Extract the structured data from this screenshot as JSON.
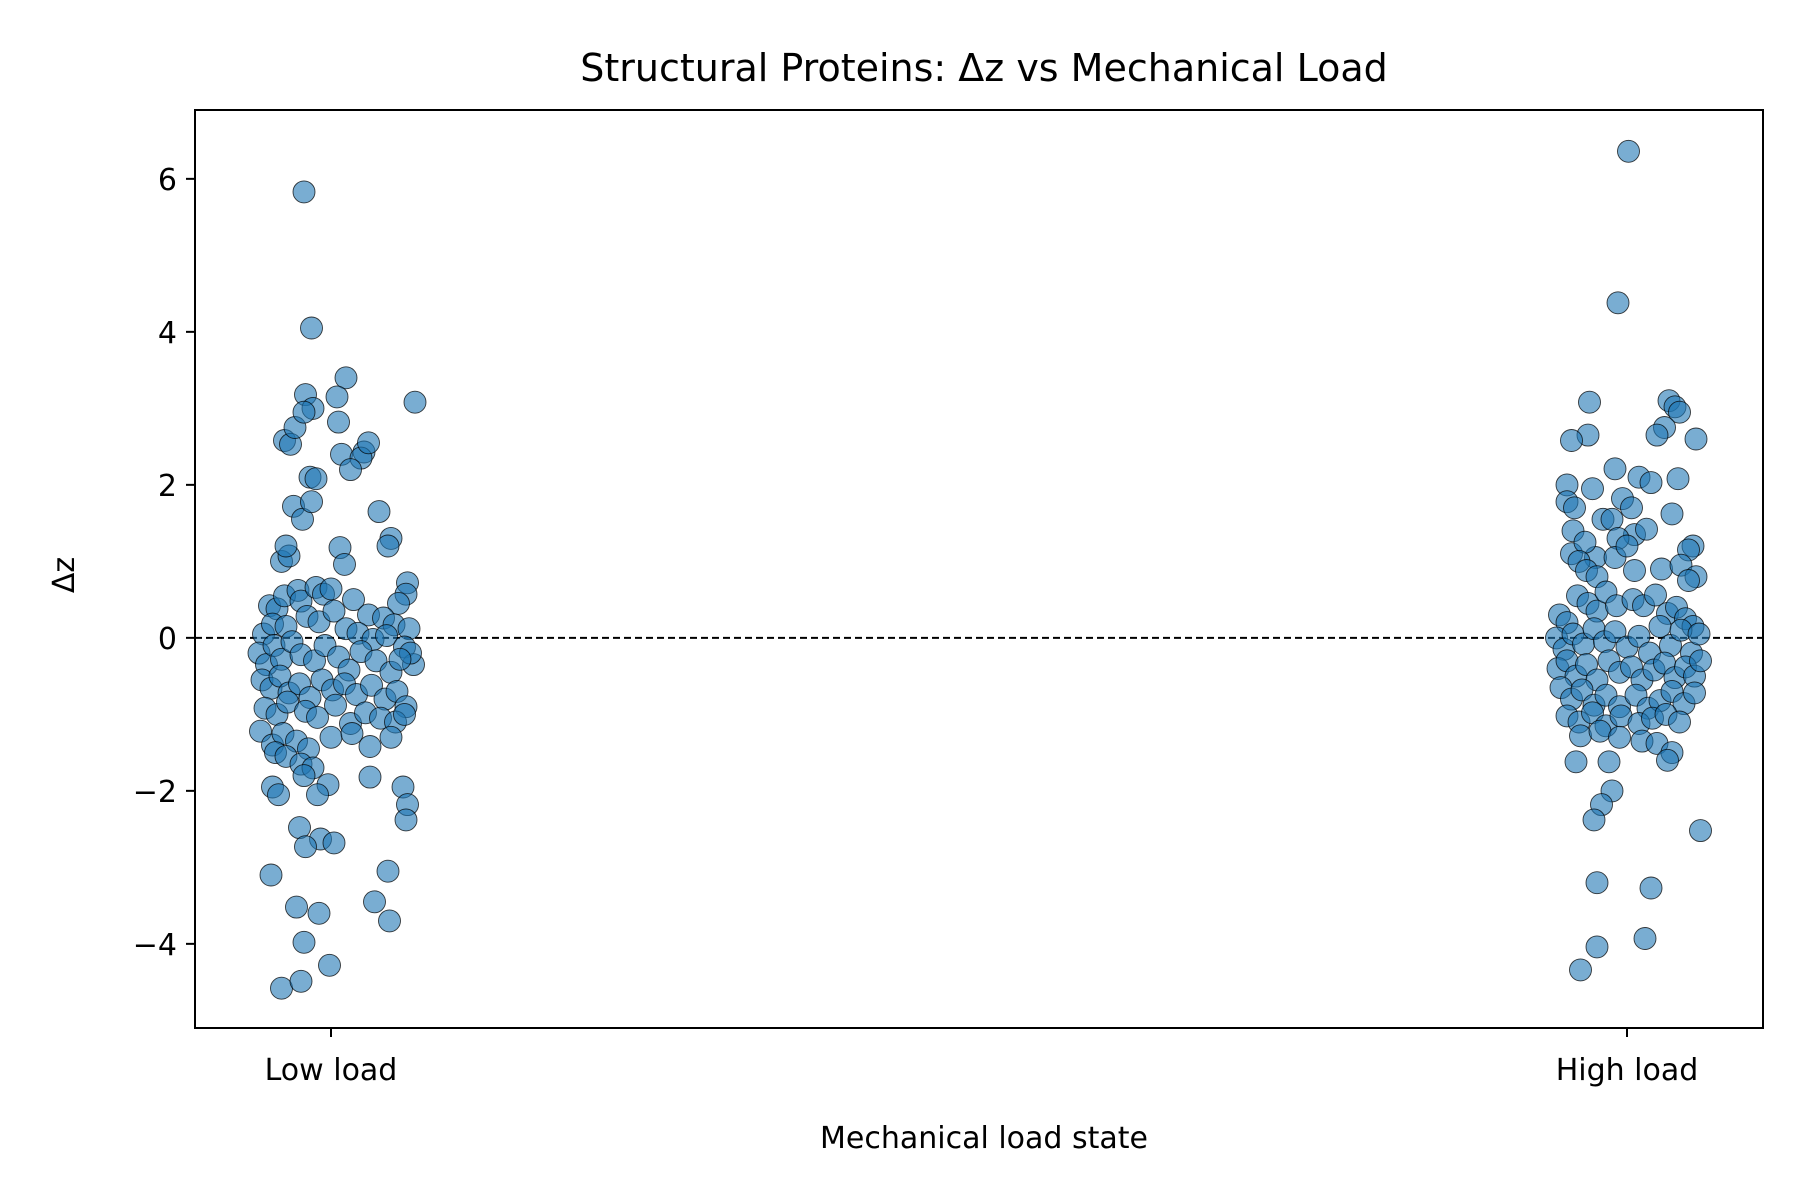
{
  "chart_data": {
    "type": "scatter",
    "title": "Structural Proteins: Δz vs Mechanical Load",
    "xlabel": "Mechanical load state",
    "ylabel": "Δz",
    "categories": [
      "Low load",
      "High load"
    ],
    "ylim": [
      -5.1,
      6.9
    ],
    "yticks": [
      6,
      4,
      2,
      0,
      -2,
      -4
    ],
    "ytick_labels": [
      "6",
      "4",
      "2",
      "0",
      "−2",
      "−4"
    ],
    "reference_line": {
      "y": 0,
      "style": "dashed"
    },
    "grid": false,
    "legend": "none",
    "point_color": "#1f77b4",
    "point_edge_color": "#000000",
    "point_alpha": 0.6,
    "series": [
      {
        "category": "Low load",
        "points": [
          [
            -0.18,
            5.83
          ],
          [
            -0.13,
            4.05
          ],
          [
            -0.17,
            3.18
          ],
          [
            -0.12,
            3.0
          ],
          [
            0.1,
            3.4
          ],
          [
            0.04,
            3.15
          ],
          [
            0.05,
            2.82
          ],
          [
            -0.31,
            2.58
          ],
          [
            -0.27,
            2.53
          ],
          [
            -0.24,
            2.75
          ],
          [
            -0.18,
            2.95
          ],
          [
            0.07,
            2.4
          ],
          [
            0.22,
            2.43
          ],
          [
            0.2,
            2.35
          ],
          [
            0.25,
            2.55
          ],
          [
            0.56,
            3.08
          ],
          [
            -0.14,
            2.1
          ],
          [
            -0.1,
            2.08
          ],
          [
            0.13,
            2.2
          ],
          [
            -0.25,
            1.72
          ],
          [
            -0.19,
            1.55
          ],
          [
            -0.13,
            1.78
          ],
          [
            0.32,
            1.65
          ],
          [
            -0.33,
            1.0
          ],
          [
            -0.28,
            1.07
          ],
          [
            -0.3,
            1.2
          ],
          [
            0.06,
            1.18
          ],
          [
            0.4,
            1.3
          ],
          [
            0.38,
            1.2
          ],
          [
            0.09,
            0.96
          ],
          [
            0.51,
            0.72
          ],
          [
            0.5,
            0.57
          ],
          [
            0.45,
            0.45
          ],
          [
            -0.41,
            0.42
          ],
          [
            -0.36,
            0.38
          ],
          [
            -0.31,
            0.55
          ],
          [
            -0.22,
            0.62
          ],
          [
            -0.2,
            0.48
          ],
          [
            -0.1,
            0.66
          ],
          [
            -0.05,
            0.57
          ],
          [
            0.0,
            0.64
          ],
          [
            0.15,
            0.5
          ],
          [
            0.25,
            0.3
          ],
          [
            0.35,
            0.26
          ],
          [
            0.42,
            0.17
          ],
          [
            0.52,
            0.12
          ],
          [
            -0.45,
            0.05
          ],
          [
            -0.39,
            0.18
          ],
          [
            -0.3,
            0.15
          ],
          [
            -0.16,
            0.28
          ],
          [
            -0.08,
            0.21
          ],
          [
            0.02,
            0.35
          ],
          [
            0.1,
            0.12
          ],
          [
            0.18,
            0.06
          ],
          [
            0.28,
            -0.02
          ],
          [
            0.37,
            0.03
          ],
          [
            0.49,
            -0.12
          ],
          [
            0.55,
            -0.35
          ],
          [
            0.53,
            -0.2
          ],
          [
            -0.48,
            -0.2
          ],
          [
            -0.43,
            -0.35
          ],
          [
            -0.38,
            -0.1
          ],
          [
            -0.33,
            -0.28
          ],
          [
            -0.26,
            -0.05
          ],
          [
            -0.2,
            -0.22
          ],
          [
            -0.11,
            -0.3
          ],
          [
            -0.04,
            -0.1
          ],
          [
            0.05,
            -0.25
          ],
          [
            0.12,
            -0.42
          ],
          [
            0.2,
            -0.18
          ],
          [
            0.3,
            -0.3
          ],
          [
            0.4,
            -0.45
          ],
          [
            0.46,
            -0.28
          ],
          [
            -0.46,
            -0.55
          ],
          [
            -0.4,
            -0.66
          ],
          [
            -0.34,
            -0.5
          ],
          [
            -0.28,
            -0.72
          ],
          [
            -0.21,
            -0.6
          ],
          [
            -0.14,
            -0.78
          ],
          [
            -0.06,
            -0.55
          ],
          [
            0.01,
            -0.68
          ],
          [
            0.09,
            -0.6
          ],
          [
            0.17,
            -0.74
          ],
          [
            0.27,
            -0.62
          ],
          [
            0.36,
            -0.8
          ],
          [
            0.44,
            -0.7
          ],
          [
            0.5,
            -0.9
          ],
          [
            -0.44,
            -0.92
          ],
          [
            -0.36,
            -1.0
          ],
          [
            -0.29,
            -0.84
          ],
          [
            -0.17,
            -0.96
          ],
          [
            -0.09,
            -1.04
          ],
          [
            0.03,
            -0.88
          ],
          [
            0.13,
            -1.12
          ],
          [
            0.23,
            -0.98
          ],
          [
            0.33,
            -1.05
          ],
          [
            0.43,
            -1.1
          ],
          [
            0.49,
            -1.0
          ],
          [
            -0.47,
            -1.22
          ],
          [
            -0.39,
            -1.4
          ],
          [
            -0.32,
            -1.25
          ],
          [
            -0.23,
            -1.35
          ],
          [
            -0.15,
            -1.45
          ],
          [
            0.0,
            -1.3
          ],
          [
            0.14,
            -1.25
          ],
          [
            0.26,
            -1.42
          ],
          [
            0.4,
            -1.3
          ],
          [
            -0.37,
            -1.5
          ],
          [
            -0.3,
            -1.55
          ],
          [
            -0.2,
            -1.65
          ],
          [
            -0.12,
            -1.7
          ],
          [
            0.26,
            -1.82
          ],
          [
            0.48,
            -1.95
          ],
          [
            0.51,
            -2.18
          ],
          [
            0.5,
            -2.38
          ],
          [
            -0.39,
            -1.95
          ],
          [
            -0.35,
            -2.05
          ],
          [
            -0.18,
            -1.8
          ],
          [
            -0.02,
            -1.92
          ],
          [
            -0.09,
            -2.05
          ],
          [
            -0.21,
            -2.48
          ],
          [
            -0.07,
            -2.63
          ],
          [
            -0.17,
            -2.73
          ],
          [
            0.02,
            -2.68
          ],
          [
            -0.4,
            -3.1
          ],
          [
            0.38,
            -3.05
          ],
          [
            -0.23,
            -3.52
          ],
          [
            -0.08,
            -3.6
          ],
          [
            0.29,
            -3.45
          ],
          [
            0.39,
            -3.7
          ],
          [
            -0.18,
            -3.98
          ],
          [
            -0.01,
            -4.28
          ],
          [
            -0.33,
            -4.58
          ],
          [
            -0.2,
            -4.49
          ]
        ]
      },
      {
        "category": "High load",
        "points": [
          [
            0.01,
            6.36
          ],
          [
            -0.06,
            4.38
          ],
          [
            -0.25,
            3.08
          ],
          [
            -0.26,
            2.65
          ],
          [
            -0.37,
            2.58
          ],
          [
            0.28,
            3.1
          ],
          [
            0.32,
            3.02
          ],
          [
            0.35,
            2.95
          ],
          [
            0.25,
            2.75
          ],
          [
            0.2,
            2.65
          ],
          [
            0.46,
            2.6
          ],
          [
            -0.08,
            2.21
          ],
          [
            0.08,
            2.1
          ],
          [
            0.34,
            2.08
          ],
          [
            0.16,
            2.03
          ],
          [
            -0.4,
            2.0
          ],
          [
            -0.23,
            1.95
          ],
          [
            -0.03,
            1.82
          ],
          [
            -0.4,
            1.78
          ],
          [
            -0.35,
            1.7
          ],
          [
            0.03,
            1.7
          ],
          [
            -0.16,
            1.55
          ],
          [
            -0.1,
            1.55
          ],
          [
            0.3,
            1.62
          ],
          [
            -0.36,
            1.4
          ],
          [
            0.05,
            1.35
          ],
          [
            0.13,
            1.42
          ],
          [
            -0.06,
            1.3
          ],
          [
            0.44,
            1.2
          ],
          [
            0.41,
            1.15
          ],
          [
            -0.37,
            1.1
          ],
          [
            -0.21,
            1.05
          ],
          [
            -0.08,
            1.05
          ],
          [
            0.0,
            1.2
          ],
          [
            -0.28,
            1.25
          ],
          [
            -0.32,
            1.0
          ],
          [
            -0.27,
            0.88
          ],
          [
            -0.2,
            0.8
          ],
          [
            0.05,
            0.88
          ],
          [
            0.23,
            0.9
          ],
          [
            0.36,
            0.95
          ],
          [
            0.46,
            0.8
          ],
          [
            0.41,
            0.75
          ],
          [
            -0.45,
            0.3
          ],
          [
            -0.4,
            0.2
          ],
          [
            -0.33,
            0.55
          ],
          [
            -0.26,
            0.45
          ],
          [
            -0.2,
            0.35
          ],
          [
            -0.14,
            0.6
          ],
          [
            -0.07,
            0.42
          ],
          [
            0.04,
            0.5
          ],
          [
            0.11,
            0.42
          ],
          [
            0.19,
            0.56
          ],
          [
            0.27,
            0.32
          ],
          [
            0.33,
            0.4
          ],
          [
            0.39,
            0.25
          ],
          [
            0.44,
            0.15
          ],
          [
            -0.47,
            0.0
          ],
          [
            -0.42,
            -0.15
          ],
          [
            -0.36,
            0.05
          ],
          [
            -0.29,
            -0.08
          ],
          [
            -0.22,
            0.12
          ],
          [
            -0.15,
            -0.05
          ],
          [
            -0.08,
            0.08
          ],
          [
            0.0,
            -0.12
          ],
          [
            0.08,
            0.02
          ],
          [
            0.15,
            -0.2
          ],
          [
            0.22,
            0.15
          ],
          [
            0.29,
            -0.1
          ],
          [
            0.36,
            0.1
          ],
          [
            0.43,
            -0.2
          ],
          [
            0.48,
            0.05
          ],
          [
            -0.46,
            -0.4
          ],
          [
            -0.4,
            -0.3
          ],
          [
            -0.34,
            -0.5
          ],
          [
            -0.27,
            -0.35
          ],
          [
            -0.2,
            -0.55
          ],
          [
            -0.12,
            -0.3
          ],
          [
            -0.05,
            -0.45
          ],
          [
            0.03,
            -0.38
          ],
          [
            0.1,
            -0.55
          ],
          [
            0.18,
            -0.42
          ],
          [
            0.25,
            -0.33
          ],
          [
            0.32,
            -0.52
          ],
          [
            0.39,
            -0.38
          ],
          [
            0.45,
            -0.5
          ],
          [
            0.49,
            -0.3
          ],
          [
            -0.44,
            -0.65
          ],
          [
            -0.37,
            -0.8
          ],
          [
            -0.3,
            -0.68
          ],
          [
            -0.22,
            -0.88
          ],
          [
            -0.14,
            -0.75
          ],
          [
            -0.05,
            -0.9
          ],
          [
            0.06,
            -0.75
          ],
          [
            0.14,
            -0.92
          ],
          [
            0.22,
            -0.82
          ],
          [
            0.3,
            -0.7
          ],
          [
            0.38,
            -0.86
          ],
          [
            0.45,
            -0.72
          ],
          [
            -0.4,
            -1.02
          ],
          [
            -0.32,
            -1.1
          ],
          [
            -0.23,
            -0.98
          ],
          [
            -0.14,
            -1.15
          ],
          [
            -0.04,
            -1.02
          ],
          [
            0.08,
            -1.12
          ],
          [
            0.17,
            -1.05
          ],
          [
            0.26,
            -1.0
          ],
          [
            0.35,
            -1.1
          ],
          [
            -0.31,
            -1.28
          ],
          [
            -0.18,
            -1.22
          ],
          [
            -0.05,
            -1.3
          ],
          [
            0.1,
            -1.35
          ],
          [
            0.2,
            -1.38
          ],
          [
            0.3,
            -1.5
          ],
          [
            -0.34,
            -1.62
          ],
          [
            -0.12,
            -1.62
          ],
          [
            0.27,
            -1.6
          ],
          [
            -0.1,
            -2.0
          ],
          [
            -0.17,
            -2.18
          ],
          [
            -0.22,
            -2.38
          ],
          [
            0.49,
            -2.52
          ],
          [
            -0.2,
            -3.2
          ],
          [
            0.16,
            -3.27
          ],
          [
            -0.2,
            -4.04
          ],
          [
            0.12,
            -3.93
          ],
          [
            -0.31,
            -4.34
          ]
        ]
      }
    ]
  }
}
